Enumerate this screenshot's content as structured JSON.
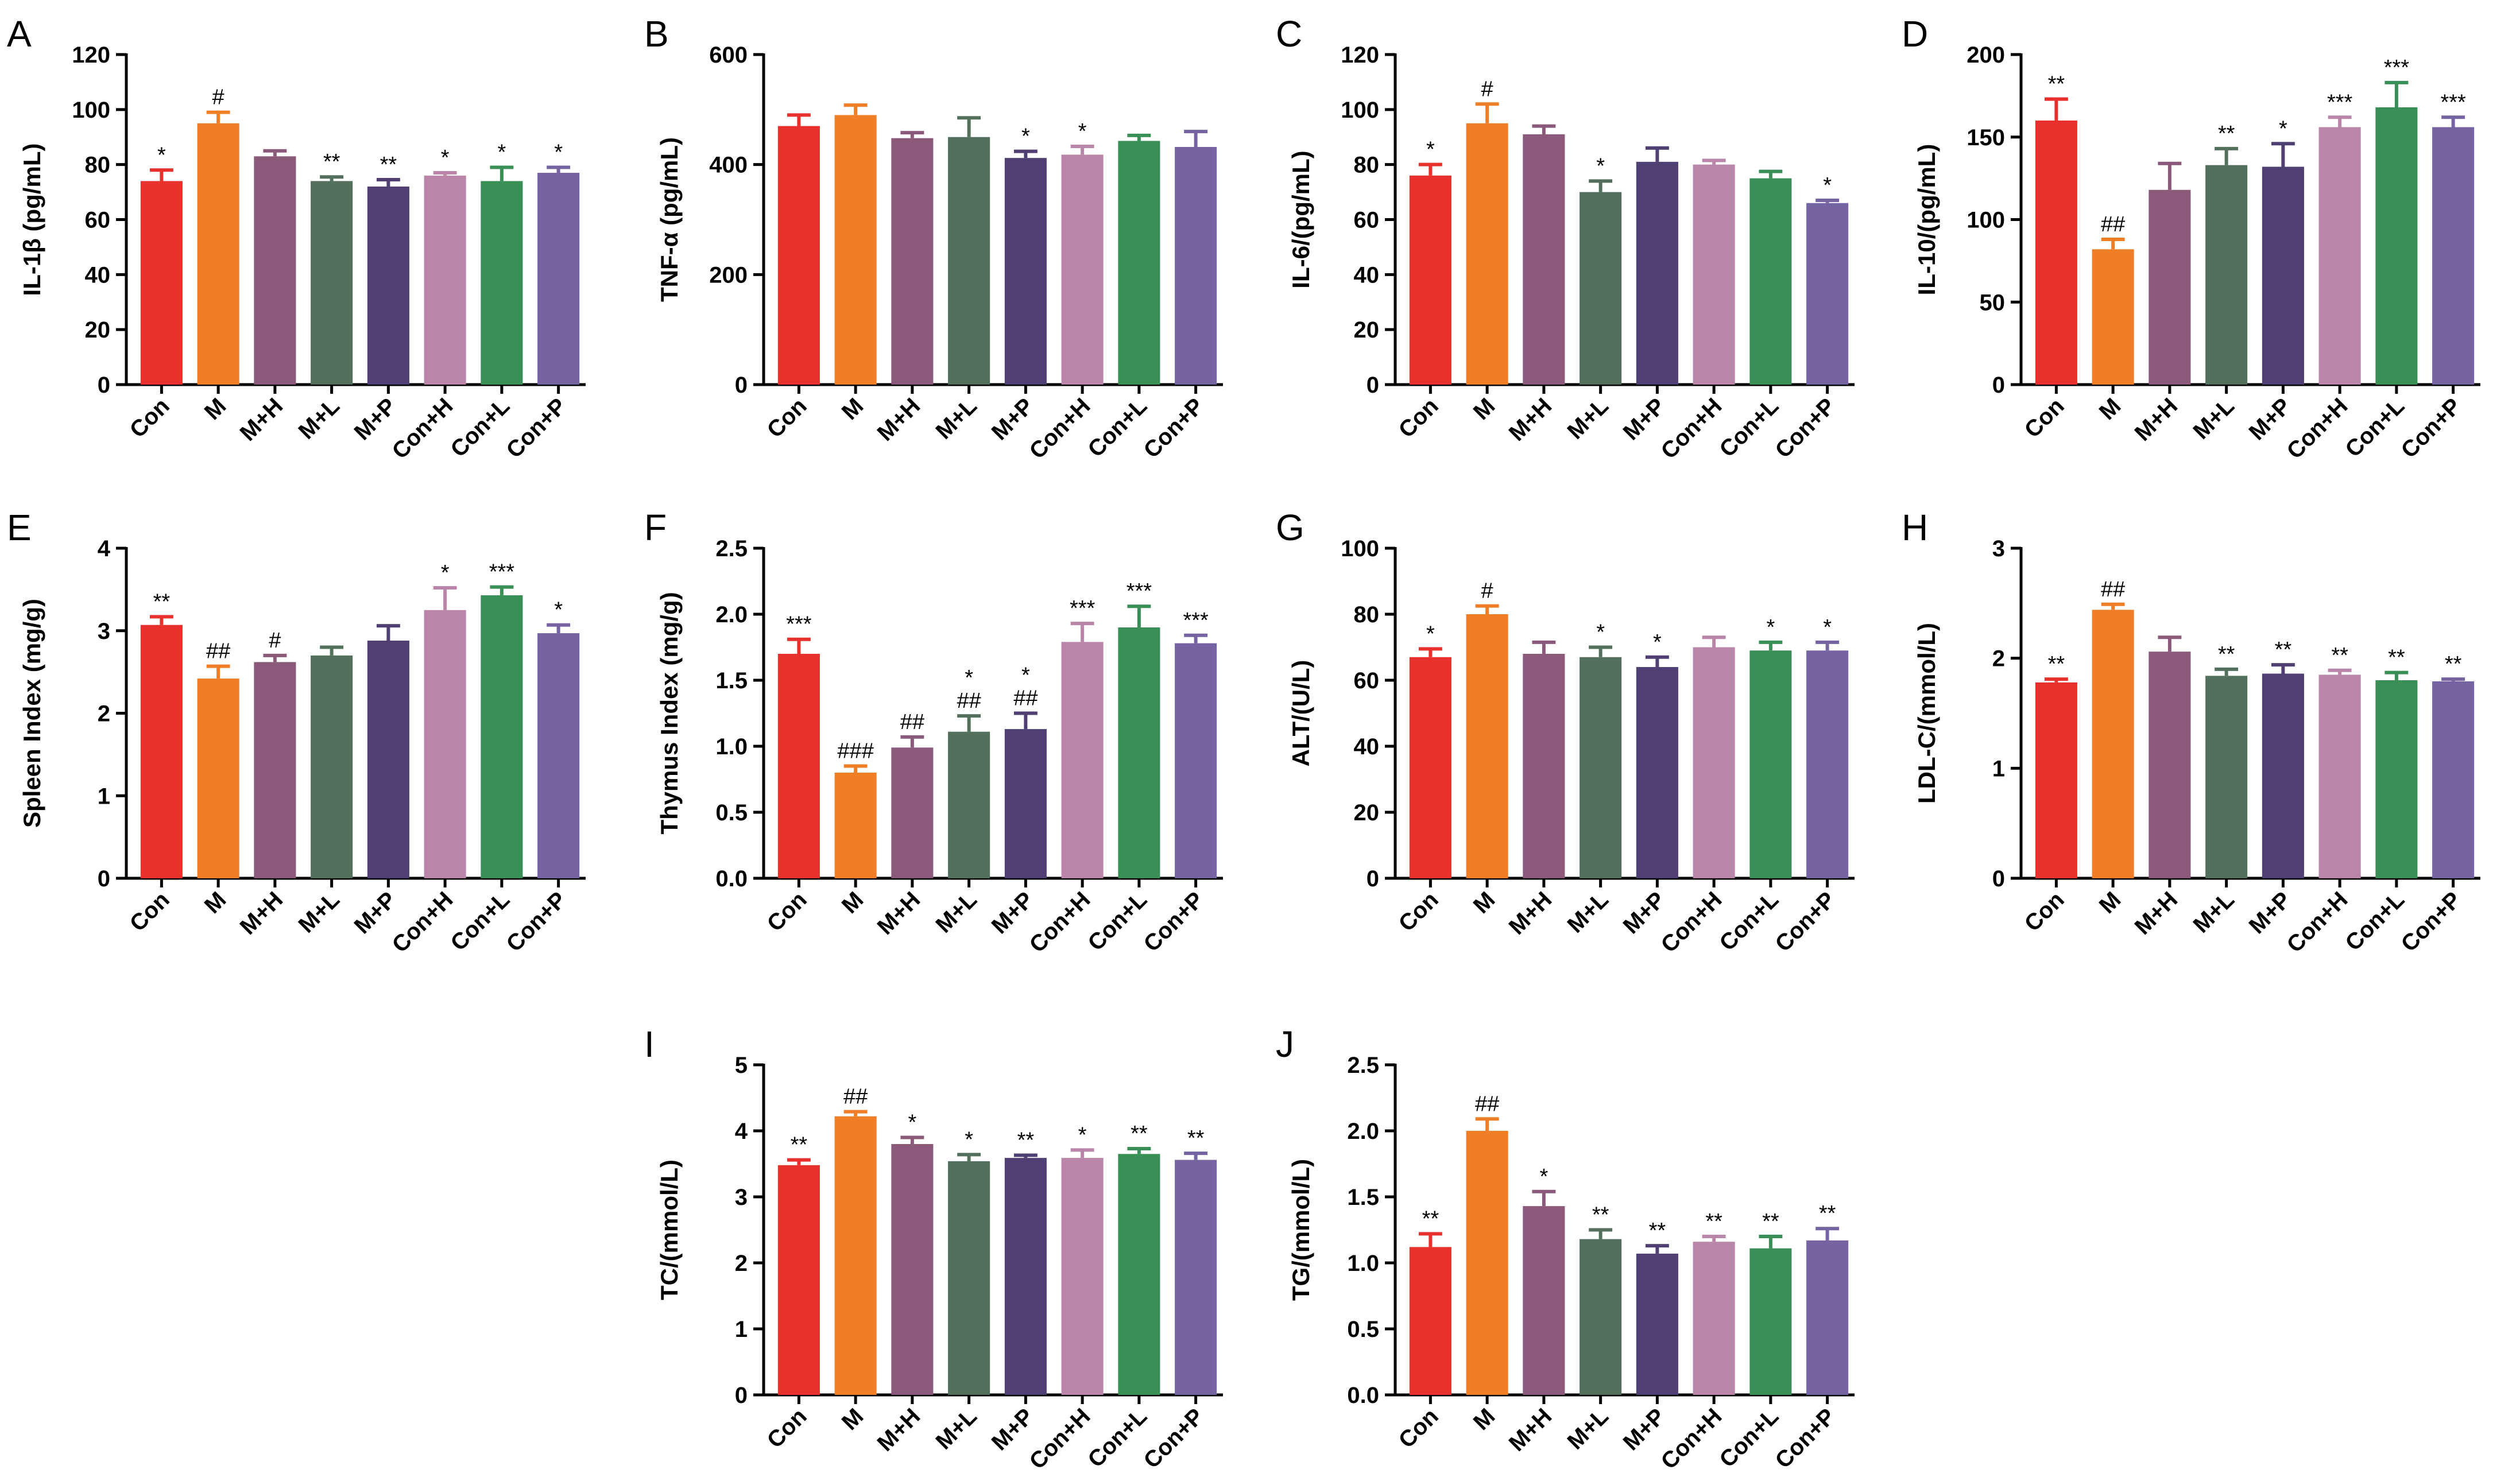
{
  "colors": [
    "#E8312D",
    "#F07E26",
    "#8B5A7B",
    "#53705C",
    "#4F3F73",
    "#B985A8",
    "#3A8F57",
    "#7563A2"
  ],
  "chart_data": [
    {
      "panel": "A",
      "type": "bar",
      "ylabel": "IL-1β (pg/mL)",
      "ylim": [
        0,
        120
      ],
      "ticks": [
        0,
        20,
        40,
        60,
        80,
        100,
        120
      ],
      "categories": [
        "Con",
        "M",
        "M+H",
        "M+L",
        "M+P",
        "Con+H",
        "Con+L",
        "Con+P"
      ],
      "values": [
        74,
        95,
        83,
        74,
        72,
        76,
        74,
        77
      ],
      "errors": [
        4,
        4,
        2,
        1.5,
        2.5,
        1,
        5,
        2
      ],
      "annotations": [
        "*",
        "#",
        "",
        "**",
        "**",
        "*",
        "*",
        "*"
      ]
    },
    {
      "panel": "B",
      "type": "bar",
      "ylabel": "TNF-α (pg/mL)",
      "ylim": [
        0,
        600
      ],
      "ticks": [
        0,
        200,
        400,
        600
      ],
      "categories": [
        "Con",
        "M",
        "M+H",
        "M+L",
        "M+P",
        "Con+H",
        "Con+L",
        "Con+P"
      ],
      "values": [
        470,
        490,
        448,
        450,
        412,
        418,
        443,
        432
      ],
      "errors": [
        20,
        18,
        10,
        35,
        12,
        15,
        10,
        28
      ],
      "annotations": [
        "",
        "",
        "",
        "",
        "*",
        "*",
        "",
        ""
      ]
    },
    {
      "panel": "C",
      "type": "bar",
      "ylabel": "IL-6/(pg/mL)",
      "ylim": [
        0,
        120
      ],
      "ticks": [
        0,
        20,
        40,
        60,
        80,
        100,
        120
      ],
      "categories": [
        "Con",
        "M",
        "M+H",
        "M+L",
        "M+P",
        "Con+H",
        "Con+L",
        "Con+P"
      ],
      "values": [
        76,
        95,
        91,
        70,
        81,
        80,
        75,
        66
      ],
      "errors": [
        4,
        7,
        3,
        4,
        5,
        1.5,
        2.5,
        1
      ],
      "annotations": [
        "*",
        "#",
        "",
        "*",
        "",
        "",
        "",
        "*"
      ]
    },
    {
      "panel": "D",
      "type": "bar",
      "ylabel": "IL-10/(pg/mL)",
      "ylim": [
        0,
        200
      ],
      "ticks": [
        0,
        50,
        100,
        150,
        200
      ],
      "categories": [
        "Con",
        "M",
        "M+H",
        "M+L",
        "M+P",
        "Con+H",
        "Con+L",
        "Con+P"
      ],
      "values": [
        160,
        82,
        118,
        133,
        132,
        156,
        168,
        156
      ],
      "errors": [
        13,
        6,
        16,
        10,
        14,
        6,
        15,
        6
      ],
      "annotations": [
        "**",
        "##",
        "",
        "**",
        "*",
        "***",
        "***",
        "***"
      ]
    },
    {
      "panel": "E",
      "type": "bar",
      "ylabel": "Spleen Index (mg/g)",
      "ylim": [
        0,
        4
      ],
      "ticks": [
        0,
        1,
        2,
        3,
        4
      ],
      "categories": [
        "Con",
        "M",
        "M+H",
        "M+L",
        "M+P",
        "Con+H",
        "Con+L",
        "Con+P"
      ],
      "values": [
        3.07,
        2.42,
        2.62,
        2.7,
        2.88,
        3.25,
        3.43,
        2.97
      ],
      "errors": [
        0.1,
        0.15,
        0.08,
        0.1,
        0.18,
        0.27,
        0.1,
        0.1
      ],
      "annotations": [
        "**",
        "##",
        "#",
        "",
        "",
        "*",
        "***",
        "*"
      ]
    },
    {
      "panel": "F",
      "type": "bar",
      "ylabel": "Thymus Index (mg/g)",
      "ylim": [
        0,
        2.5
      ],
      "ticks": [
        "0.0",
        "0.5",
        "1.0",
        "1.5",
        "2.0",
        "2.5"
      ],
      "categories": [
        "Con",
        "M",
        "M+H",
        "M+L",
        "M+P",
        "Con+H",
        "Con+L",
        "Con+P"
      ],
      "values": [
        1.7,
        0.8,
        0.99,
        1.11,
        1.13,
        1.79,
        1.9,
        1.78
      ],
      "errors": [
        0.11,
        0.05,
        0.08,
        0.12,
        0.12,
        0.14,
        0.16,
        0.06
      ],
      "annotations": [
        "***",
        "###",
        "##",
        "*\n##",
        "*\n##",
        "***",
        "***",
        "***"
      ]
    },
    {
      "panel": "G",
      "type": "bar",
      "ylabel": "ALT/(U/L)",
      "ylim": [
        0,
        100
      ],
      "ticks": [
        0,
        20,
        40,
        60,
        80,
        100
      ],
      "categories": [
        "Con",
        "M",
        "M+H",
        "M+L",
        "M+P",
        "Con+H",
        "Con+L",
        "Con+P"
      ],
      "values": [
        67,
        80,
        68,
        67,
        64,
        70,
        69,
        69
      ],
      "errors": [
        2.5,
        2.5,
        3.5,
        3,
        3,
        3,
        2.5,
        2.5
      ],
      "annotations": [
        "*",
        "#",
        "",
        "*",
        "*",
        "",
        "*",
        "*"
      ]
    },
    {
      "panel": "H",
      "type": "bar",
      "ylabel": "LDL-C/(mmol/L)",
      "ylim": [
        0,
        3
      ],
      "ticks": [
        0,
        1,
        2,
        3
      ],
      "categories": [
        "Con",
        "M",
        "M+H",
        "M+L",
        "M+P",
        "Con+H",
        "Con+L",
        "Con+P"
      ],
      "values": [
        1.78,
        2.44,
        2.06,
        1.84,
        1.86,
        1.85,
        1.8,
        1.79
      ],
      "errors": [
        0.03,
        0.05,
        0.13,
        0.06,
        0.08,
        0.04,
        0.07,
        0.02
      ],
      "annotations": [
        "**",
        "##",
        "",
        "**",
        "**",
        "**",
        "**",
        "**"
      ]
    },
    {
      "panel": "I",
      "type": "bar",
      "ylabel": "TC/(mmol/L)",
      "ylim": [
        0,
        5
      ],
      "ticks": [
        0,
        1,
        2,
        3,
        4,
        5
      ],
      "categories": [
        "Con",
        "M",
        "M+H",
        "M+L",
        "M+P",
        "Con+H",
        "Con+L",
        "Con+P"
      ],
      "values": [
        3.48,
        4.22,
        3.8,
        3.54,
        3.59,
        3.59,
        3.65,
        3.56
      ],
      "errors": [
        0.08,
        0.07,
        0.1,
        0.1,
        0.04,
        0.12,
        0.08,
        0.1
      ],
      "annotations": [
        "**",
        "##",
        "*",
        "*",
        "**",
        "*",
        "**",
        "**"
      ]
    },
    {
      "panel": "J",
      "type": "bar",
      "ylabel": "TG/(mmol/L)",
      "ylim": [
        0,
        2.5
      ],
      "ticks": [
        "0.0",
        "0.5",
        "1.0",
        "1.5",
        "2.0",
        "2.5"
      ],
      "categories": [
        "Con",
        "M",
        "M+H",
        "M+L",
        "M+P",
        "Con+H",
        "Con+L",
        "Con+P"
      ],
      "values": [
        1.12,
        2.0,
        1.43,
        1.18,
        1.07,
        1.16,
        1.11,
        1.17
      ],
      "errors": [
        0.1,
        0.09,
        0.11,
        0.07,
        0.06,
        0.04,
        0.09,
        0.09
      ],
      "annotations": [
        "**",
        "##",
        "*",
        "**",
        "**",
        "**",
        "**",
        "**"
      ]
    }
  ]
}
